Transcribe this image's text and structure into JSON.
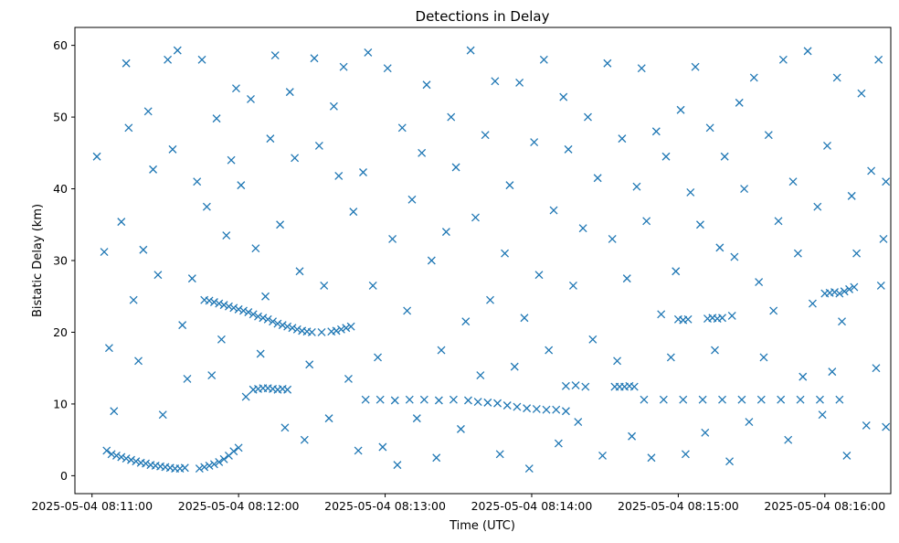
{
  "chart_data": {
    "type": "scatter",
    "title": "Detections in Delay",
    "xlabel": "Time (UTC)",
    "ylabel": "Bistatic Delay (km)",
    "x_unit": "time",
    "xlim": [
      "2025-05-04 08:10:53",
      "2025-05-04 08:16:27"
    ],
    "ylim": [
      -2.5,
      62.5
    ],
    "x_ticks": [
      "2025-05-04 08:11:00",
      "2025-05-04 08:12:00",
      "2025-05-04 08:13:00",
      "2025-05-04 08:14:00",
      "2025-05-04 08:15:00",
      "2025-05-04 08:16:00"
    ],
    "y_ticks": [
      0,
      10,
      20,
      30,
      40,
      50,
      60
    ],
    "marker": "x",
    "marker_color": "#1f77b4",
    "grid": false,
    "series": [
      {
        "name": "",
        "points": [
          [
            "08:11:06",
            3.5
          ],
          [
            "08:11:08",
            3.0
          ],
          [
            "08:11:10",
            2.8
          ],
          [
            "08:11:12",
            2.6
          ],
          [
            "08:11:14",
            2.4
          ],
          [
            "08:11:16",
            2.2
          ],
          [
            "08:11:18",
            2.0
          ],
          [
            "08:11:20",
            1.8
          ],
          [
            "08:11:22",
            1.7
          ],
          [
            "08:11:24",
            1.5
          ],
          [
            "08:11:26",
            1.4
          ],
          [
            "08:11:28",
            1.3
          ],
          [
            "08:11:30",
            1.2
          ],
          [
            "08:11:32",
            1.1
          ],
          [
            "08:11:34",
            1.0
          ],
          [
            "08:11:36",
            1.0
          ],
          [
            "08:11:38",
            1.1
          ],
          [
            "08:11:44",
            1.0
          ],
          [
            "08:11:46",
            1.2
          ],
          [
            "08:11:48",
            1.4
          ],
          [
            "08:11:50",
            1.6
          ],
          [
            "08:11:52",
            1.9
          ],
          [
            "08:11:54",
            2.3
          ],
          [
            "08:11:56",
            2.8
          ],
          [
            "08:11:58",
            3.4
          ],
          [
            "08:12:00",
            3.9
          ],
          [
            "08:11:46",
            24.5
          ],
          [
            "08:11:48",
            24.4
          ],
          [
            "08:11:50",
            24.2
          ],
          [
            "08:11:52",
            24.0
          ],
          [
            "08:11:54",
            23.8
          ],
          [
            "08:11:56",
            23.6
          ],
          [
            "08:11:58",
            23.4
          ],
          [
            "08:12:00",
            23.2
          ],
          [
            "08:12:02",
            23.0
          ],
          [
            "08:12:04",
            22.8
          ],
          [
            "08:12:06",
            22.5
          ],
          [
            "08:12:08",
            22.2
          ],
          [
            "08:12:10",
            22.0
          ],
          [
            "08:12:12",
            21.8
          ],
          [
            "08:12:14",
            21.5
          ],
          [
            "08:12:16",
            21.2
          ],
          [
            "08:12:18",
            21.0
          ],
          [
            "08:12:20",
            20.8
          ],
          [
            "08:12:22",
            20.6
          ],
          [
            "08:12:24",
            20.4
          ],
          [
            "08:12:26",
            20.2
          ],
          [
            "08:12:28",
            20.1
          ],
          [
            "08:12:30",
            20.0
          ],
          [
            "08:12:34",
            20.0
          ],
          [
            "08:12:38",
            20.1
          ],
          [
            "08:12:40",
            20.2
          ],
          [
            "08:12:42",
            20.4
          ],
          [
            "08:12:44",
            20.6
          ],
          [
            "08:12:46",
            20.8
          ],
          [
            "08:12:06",
            12.0
          ],
          [
            "08:12:08",
            12.1
          ],
          [
            "08:12:10",
            12.2
          ],
          [
            "08:12:12",
            12.2
          ],
          [
            "08:12:14",
            12.1
          ],
          [
            "08:12:16",
            12.0
          ],
          [
            "08:12:18",
            12.1
          ],
          [
            "08:12:20",
            12.0
          ],
          [
            "08:12:52",
            10.6
          ],
          [
            "08:12:58",
            10.6
          ],
          [
            "08:13:04",
            10.5
          ],
          [
            "08:13:10",
            10.6
          ],
          [
            "08:13:16",
            10.6
          ],
          [
            "08:13:22",
            10.5
          ],
          [
            "08:13:28",
            10.6
          ],
          [
            "08:13:34",
            10.5
          ],
          [
            "08:13:38",
            10.3
          ],
          [
            "08:13:42",
            10.2
          ],
          [
            "08:13:46",
            10.1
          ],
          [
            "08:13:50",
            9.8
          ],
          [
            "08:13:54",
            9.6
          ],
          [
            "08:13:58",
            9.4
          ],
          [
            "08:14:02",
            9.3
          ],
          [
            "08:14:06",
            9.2
          ],
          [
            "08:14:10",
            9.2
          ],
          [
            "08:14:14",
            9.0
          ],
          [
            "08:14:14",
            12.5
          ],
          [
            "08:14:18",
            12.6
          ],
          [
            "08:14:22",
            12.4
          ],
          [
            "08:14:34",
            12.4
          ],
          [
            "08:14:36",
            12.4
          ],
          [
            "08:14:38",
            12.4
          ],
          [
            "08:14:40",
            12.5
          ],
          [
            "08:14:42",
            12.4
          ],
          [
            "08:14:46",
            10.6
          ],
          [
            "08:14:54",
            10.6
          ],
          [
            "08:15:02",
            10.6
          ],
          [
            "08:15:10",
            10.6
          ],
          [
            "08:15:18",
            10.6
          ],
          [
            "08:15:26",
            10.6
          ],
          [
            "08:15:34",
            10.6
          ],
          [
            "08:15:42",
            10.6
          ],
          [
            "08:15:50",
            10.6
          ],
          [
            "08:15:58",
            10.6
          ],
          [
            "08:16:06",
            10.6
          ],
          [
            "08:15:00",
            21.8
          ],
          [
            "08:15:02",
            21.7
          ],
          [
            "08:15:04",
            21.8
          ],
          [
            "08:15:12",
            21.9
          ],
          [
            "08:15:14",
            22.0
          ],
          [
            "08:15:16",
            21.9
          ],
          [
            "08:15:18",
            22.0
          ],
          [
            "08:15:22",
            22.3
          ],
          [
            "08:16:00",
            25.4
          ],
          [
            "08:16:02",
            25.5
          ],
          [
            "08:16:04",
            25.6
          ],
          [
            "08:16:06",
            25.4
          ],
          [
            "08:16:08",
            25.7
          ],
          [
            "08:16:10",
            26.0
          ],
          [
            "08:16:12",
            26.3
          ],
          [
            "08:11:02",
            44.5
          ],
          [
            "08:11:05",
            31.2
          ],
          [
            "08:11:07",
            17.8
          ],
          [
            "08:11:09",
            9.0
          ],
          [
            "08:11:12",
            35.4
          ],
          [
            "08:11:14",
            57.5
          ],
          [
            "08:11:15",
            48.5
          ],
          [
            "08:11:17",
            24.5
          ],
          [
            "08:11:19",
            16.0
          ],
          [
            "08:11:21",
            31.5
          ],
          [
            "08:11:23",
            50.8
          ],
          [
            "08:11:25",
            42.7
          ],
          [
            "08:11:27",
            28.0
          ],
          [
            "08:11:29",
            8.5
          ],
          [
            "08:11:31",
            58.0
          ],
          [
            "08:11:33",
            45.5
          ],
          [
            "08:11:35",
            59.3
          ],
          [
            "08:11:37",
            21.0
          ],
          [
            "08:11:39",
            13.5
          ],
          [
            "08:11:41",
            27.5
          ],
          [
            "08:11:43",
            41.0
          ],
          [
            "08:11:45",
            58.0
          ],
          [
            "08:11:47",
            37.5
          ],
          [
            "08:11:49",
            14.0
          ],
          [
            "08:11:51",
            49.8
          ],
          [
            "08:11:53",
            19.0
          ],
          [
            "08:11:55",
            33.5
          ],
          [
            "08:11:57",
            44.0
          ],
          [
            "08:11:59",
            54.0
          ],
          [
            "08:12:01",
            40.5
          ],
          [
            "08:12:03",
            11.0
          ],
          [
            "08:12:05",
            52.5
          ],
          [
            "08:12:07",
            31.7
          ],
          [
            "08:12:09",
            17.0
          ],
          [
            "08:12:11",
            25.0
          ],
          [
            "08:12:13",
            47.0
          ],
          [
            "08:12:15",
            58.6
          ],
          [
            "08:12:17",
            35.0
          ],
          [
            "08:12:19",
            6.7
          ],
          [
            "08:12:21",
            53.5
          ],
          [
            "08:12:23",
            44.3
          ],
          [
            "08:12:25",
            28.5
          ],
          [
            "08:12:27",
            5.0
          ],
          [
            "08:12:29",
            15.5
          ],
          [
            "08:12:31",
            58.2
          ],
          [
            "08:12:33",
            46.0
          ],
          [
            "08:12:35",
            26.5
          ],
          [
            "08:12:37",
            8.0
          ],
          [
            "08:12:39",
            51.5
          ],
          [
            "08:12:41",
            41.8
          ],
          [
            "08:12:43",
            57.0
          ],
          [
            "08:12:45",
            13.5
          ],
          [
            "08:12:47",
            36.8
          ],
          [
            "08:12:49",
            3.5
          ],
          [
            "08:12:51",
            42.3
          ],
          [
            "08:12:53",
            59.0
          ],
          [
            "08:12:55",
            26.5
          ],
          [
            "08:12:57",
            16.5
          ],
          [
            "08:12:59",
            4.0
          ],
          [
            "08:13:01",
            56.8
          ],
          [
            "08:13:03",
            33.0
          ],
          [
            "08:13:05",
            1.5
          ],
          [
            "08:13:07",
            48.5
          ],
          [
            "08:13:09",
            23.0
          ],
          [
            "08:13:11",
            38.5
          ],
          [
            "08:13:13",
            8.0
          ],
          [
            "08:13:15",
            45.0
          ],
          [
            "08:13:17",
            54.5
          ],
          [
            "08:13:19",
            30.0
          ],
          [
            "08:13:21",
            2.5
          ],
          [
            "08:13:23",
            17.5
          ],
          [
            "08:13:25",
            34.0
          ],
          [
            "08:13:27",
            50.0
          ],
          [
            "08:13:29",
            43.0
          ],
          [
            "08:13:31",
            6.5
          ],
          [
            "08:13:33",
            21.5
          ],
          [
            "08:13:35",
            59.3
          ],
          [
            "08:13:37",
            36.0
          ],
          [
            "08:13:39",
            14.0
          ],
          [
            "08:13:41",
            47.5
          ],
          [
            "08:13:43",
            24.5
          ],
          [
            "08:13:45",
            55.0
          ],
          [
            "08:13:47",
            3.0
          ],
          [
            "08:13:49",
            31.0
          ],
          [
            "08:13:51",
            40.5
          ],
          [
            "08:13:53",
            15.2
          ],
          [
            "08:13:55",
            54.8
          ],
          [
            "08:13:57",
            22.0
          ],
          [
            "08:13:59",
            1.0
          ],
          [
            "08:14:01",
            46.5
          ],
          [
            "08:14:03",
            28.0
          ],
          [
            "08:14:05",
            58.0
          ],
          [
            "08:14:07",
            17.5
          ],
          [
            "08:14:09",
            37.0
          ],
          [
            "08:14:11",
            4.5
          ],
          [
            "08:14:13",
            52.8
          ],
          [
            "08:14:15",
            45.5
          ],
          [
            "08:14:17",
            26.5
          ],
          [
            "08:14:19",
            7.5
          ],
          [
            "08:14:21",
            34.5
          ],
          [
            "08:14:23",
            50.0
          ],
          [
            "08:14:25",
            19.0
          ],
          [
            "08:14:27",
            41.5
          ],
          [
            "08:14:29",
            2.8
          ],
          [
            "08:14:31",
            57.5
          ],
          [
            "08:14:33",
            33.0
          ],
          [
            "08:14:35",
            16.0
          ],
          [
            "08:14:37",
            47.0
          ],
          [
            "08:14:39",
            27.5
          ],
          [
            "08:14:41",
            5.5
          ],
          [
            "08:14:43",
            40.3
          ],
          [
            "08:14:45",
            56.8
          ],
          [
            "08:14:47",
            35.5
          ],
          [
            "08:14:49",
            2.5
          ],
          [
            "08:14:51",
            48.0
          ],
          [
            "08:14:53",
            22.5
          ],
          [
            "08:14:55",
            44.5
          ],
          [
            "08:14:57",
            16.5
          ],
          [
            "08:14:59",
            28.5
          ],
          [
            "08:15:01",
            51.0
          ],
          [
            "08:15:03",
            3.0
          ],
          [
            "08:15:05",
            39.5
          ],
          [
            "08:15:07",
            57.0
          ],
          [
            "08:15:09",
            35.0
          ],
          [
            "08:15:11",
            6.0
          ],
          [
            "08:15:13",
            48.5
          ],
          [
            "08:15:15",
            17.5
          ],
          [
            "08:15:17",
            31.8
          ],
          [
            "08:15:19",
            44.5
          ],
          [
            "08:15:21",
            2.0
          ],
          [
            "08:15:23",
            30.5
          ],
          [
            "08:15:25",
            52.0
          ],
          [
            "08:15:27",
            40.0
          ],
          [
            "08:15:29",
            7.5
          ],
          [
            "08:15:31",
            55.5
          ],
          [
            "08:15:33",
            27.0
          ],
          [
            "08:15:35",
            16.5
          ],
          [
            "08:15:37",
            47.5
          ],
          [
            "08:15:39",
            23.0
          ],
          [
            "08:15:41",
            35.5
          ],
          [
            "08:15:43",
            58.0
          ],
          [
            "08:15:45",
            5.0
          ],
          [
            "08:15:47",
            41.0
          ],
          [
            "08:15:49",
            31.0
          ],
          [
            "08:15:51",
            13.8
          ],
          [
            "08:15:53",
            59.2
          ],
          [
            "08:15:55",
            24.0
          ],
          [
            "08:15:57",
            37.5
          ],
          [
            "08:15:59",
            8.5
          ],
          [
            "08:16:01",
            46.0
          ],
          [
            "08:16:03",
            14.5
          ],
          [
            "08:16:05",
            55.5
          ],
          [
            "08:16:07",
            21.5
          ],
          [
            "08:16:09",
            2.8
          ],
          [
            "08:16:11",
            39.0
          ],
          [
            "08:16:13",
            31.0
          ],
          [
            "08:16:15",
            53.3
          ],
          [
            "08:16:17",
            7.0
          ],
          [
            "08:16:19",
            42.5
          ],
          [
            "08:16:21",
            15.0
          ],
          [
            "08:16:22",
            58.0
          ],
          [
            "08:16:23",
            26.5
          ],
          [
            "08:16:24",
            33.0
          ],
          [
            "08:16:25",
            41.0
          ],
          [
            "08:16:25",
            6.8
          ]
        ]
      }
    ]
  }
}
